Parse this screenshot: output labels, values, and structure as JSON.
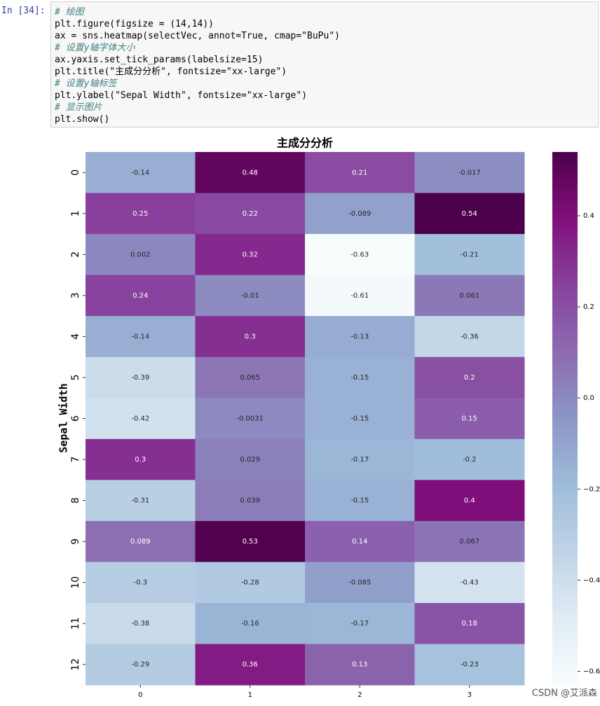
{
  "prompt": "In [34]:",
  "code": [
    "# 绘图",
    "plt.figure(figsize = (14,14))",
    "ax = sns.heatmap(selectVec, annot=True, cmap=\"BuPu\")",
    "# 设置y轴字体大小",
    "ax.yaxis.set_tick_params(labelsize=15)",
    "plt.title(\"主成分分析\", fontsize=\"xx-large\")",
    "# 设置y轴标签",
    "plt.ylabel(\"Sepal Width\", fontsize=\"xx-large\")",
    "# 显示图片",
    "plt.show()"
  ],
  "chart_data": {
    "type": "heatmap",
    "title": "主成分分析",
    "ylabel": "Sepal Width",
    "x_categories": [
      0,
      1,
      2,
      3
    ],
    "y_categories": [
      0,
      1,
      2,
      3,
      4,
      5,
      6,
      7,
      8,
      9,
      10,
      11,
      12
    ],
    "values": [
      [
        -0.14,
        0.48,
        0.21,
        -0.017
      ],
      [
        0.25,
        0.22,
        -0.089,
        0.54
      ],
      [
        0.002,
        0.32,
        -0.63,
        -0.21
      ],
      [
        0.24,
        -0.01,
        -0.61,
        0.061
      ],
      [
        -0.14,
        0.3,
        -0.13,
        -0.36
      ],
      [
        -0.39,
        0.065,
        -0.15,
        0.2
      ],
      [
        -0.42,
        -0.0031,
        -0.15,
        0.15
      ],
      [
        0.3,
        0.029,
        -0.17,
        -0.2
      ],
      [
        -0.31,
        0.039,
        -0.15,
        0.4
      ],
      [
        0.089,
        0.53,
        0.14,
        0.067
      ],
      [
        -0.3,
        -0.28,
        -0.085,
        -0.43
      ],
      [
        -0.38,
        -0.16,
        -0.17,
        0.18
      ],
      [
        -0.29,
        0.36,
        0.13,
        -0.23
      ]
    ],
    "colormap": [
      "#f7fcfd",
      "#e0ecf4",
      "#bfd3e6",
      "#9ebcda",
      "#8c96c6",
      "#8c6bb1",
      "#88419d",
      "#810f7c",
      "#4d004b"
    ],
    "zlim": [
      -0.63,
      0.54
    ],
    "zticks": [
      {
        "value": 0.4,
        "label": "0.4"
      },
      {
        "value": 0.2,
        "label": "0.2"
      },
      {
        "value": 0,
        "label": "0.0"
      },
      {
        "value": -0.2,
        "label": "−0.2"
      },
      {
        "value": -0.4,
        "label": "−0.4"
      },
      {
        "value": -0.6,
        "label": "−0.6"
      }
    ]
  },
  "watermark": "CSDN @艾派森"
}
